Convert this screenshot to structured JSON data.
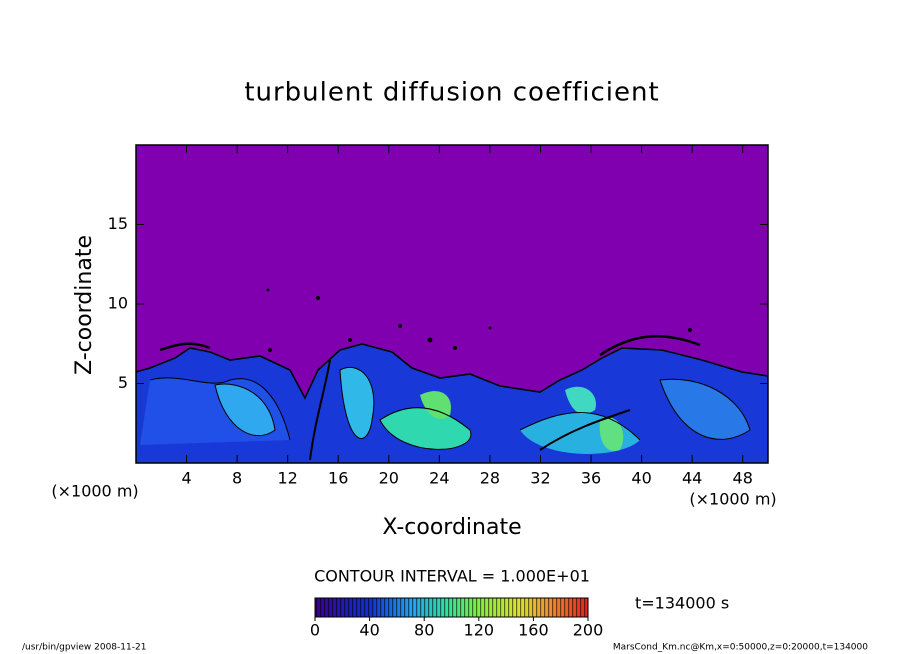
{
  "chart_data": {
    "type": "contour",
    "title": "turbulent diffusion coefficient",
    "xlabel": "X-coordinate",
    "ylabel": "Z-coordinate",
    "x_unit": "(×1000 m)",
    "y_unit": "(×1000 m)",
    "xlim": [
      0,
      50
    ],
    "xticks": [
      4,
      8,
      12,
      16,
      20,
      24,
      28,
      32,
      36,
      40,
      44,
      48
    ],
    "ylim": [
      0,
      20
    ],
    "yticks": [
      5,
      10,
      15
    ],
    "contour_interval": "CONTOUR INTERVAL = 1.000E+01",
    "colorbar": {
      "lim": [
        0,
        200
      ],
      "ticks": [
        0,
        40,
        80,
        120,
        160,
        200
      ]
    },
    "time_label": "t=134000 s",
    "footer_left": "/usr/bin/gpview  2008-11-21",
    "footer_right": "MarsCond_Km.nc@Km,x=0:50000,z=0:20000,t=134000"
  }
}
